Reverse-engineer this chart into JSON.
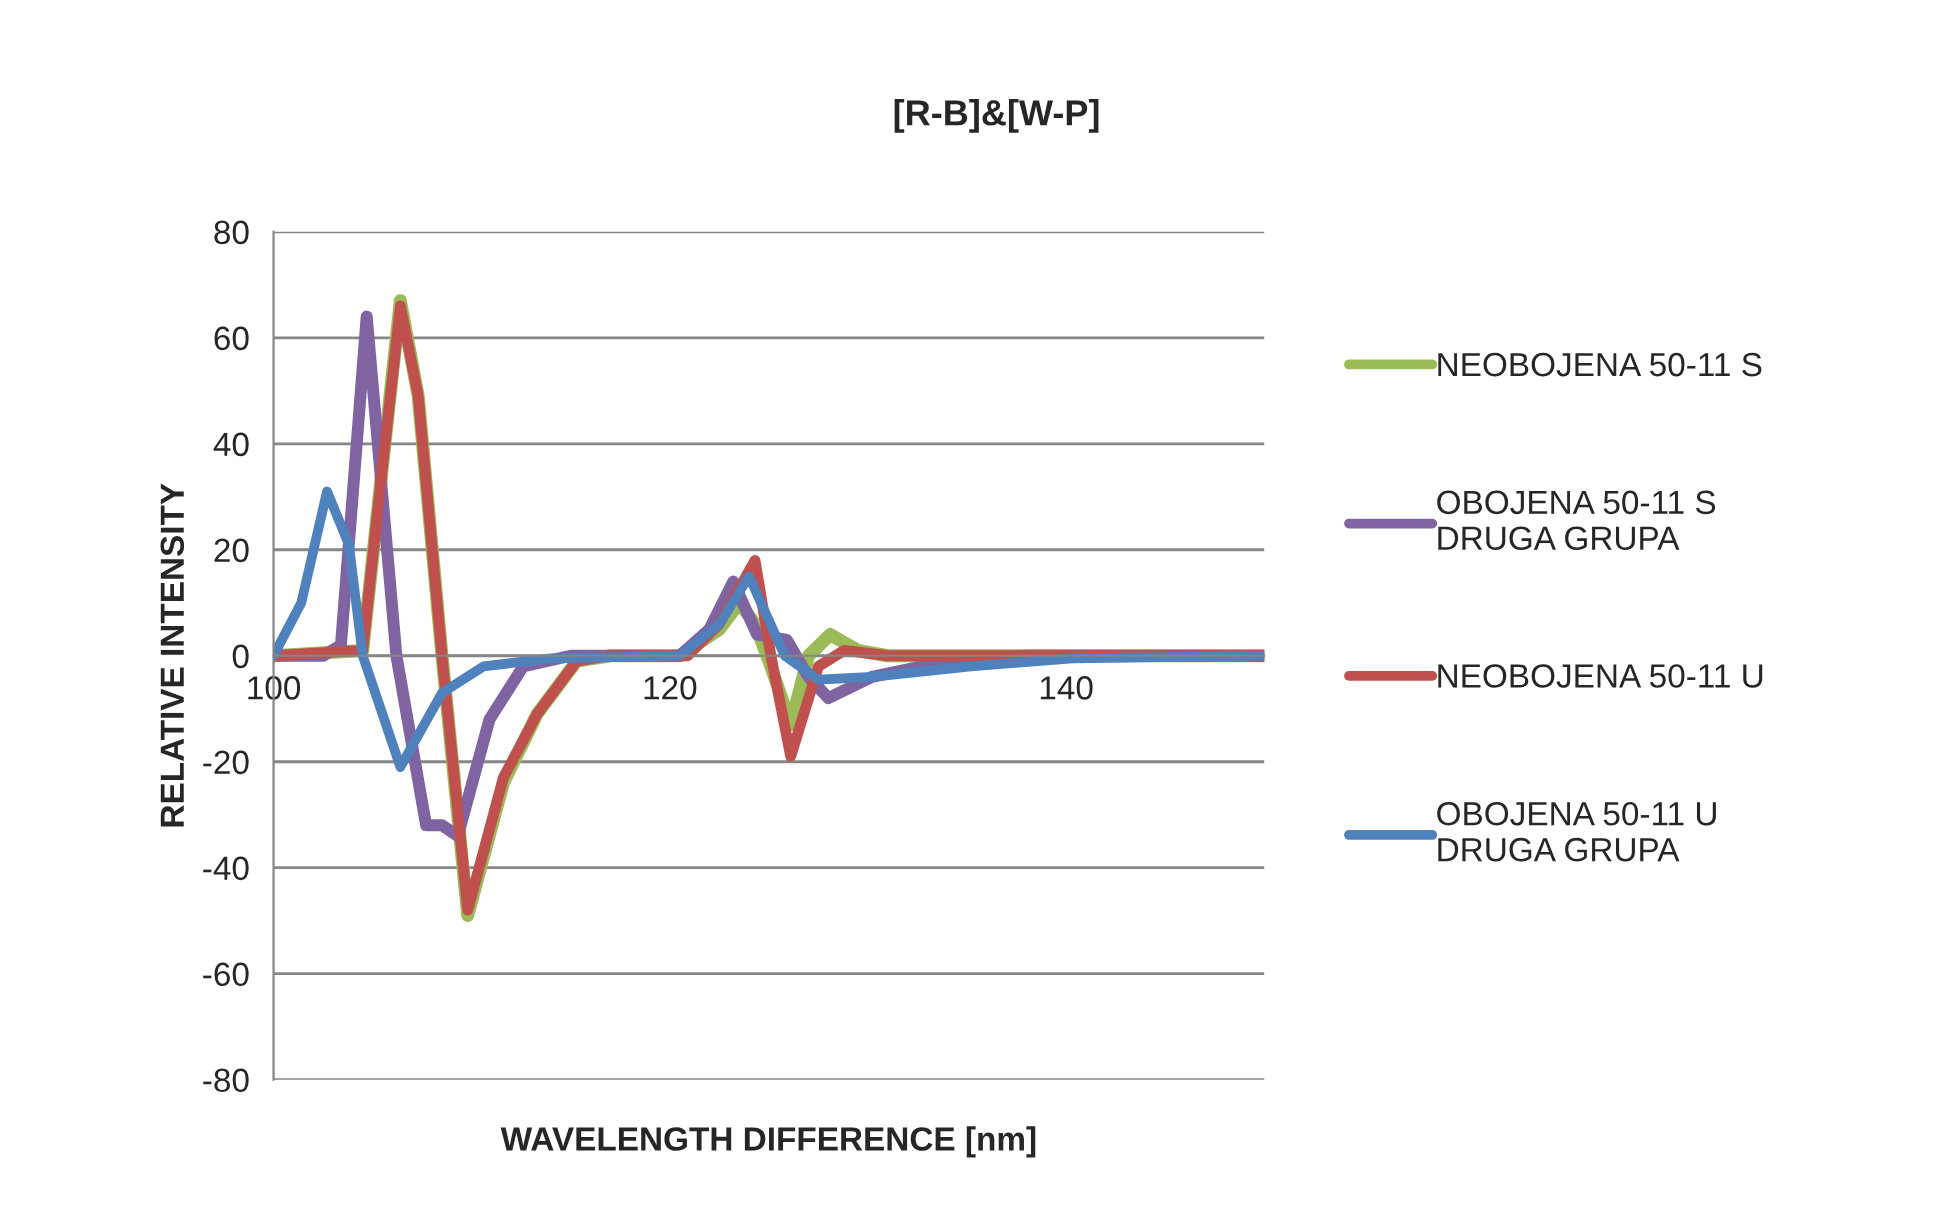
{
  "chart_data": {
    "type": "line",
    "title": "[R-B]&[W-P]",
    "xlabel": "WAVELENGTH DIFFERENCE [nm]",
    "ylabel": "RELATIVE INTENSITY",
    "xlim": [
      100,
      150
    ],
    "xticks": [
      100,
      120,
      140
    ],
    "ylim": [
      -80,
      80
    ],
    "yticks": [
      -80,
      -60,
      -40,
      -20,
      0,
      20,
      40,
      60,
      80
    ],
    "grid": "y",
    "legend": "right",
    "marker": "none",
    "line_style": "solid",
    "series": [
      {
        "name": "NEOBOJENA 50-11 S",
        "color": "#9bbb59",
        "x": [
          100,
          104.5,
          105.3,
          106.4,
          107.3,
          108.5,
          109.8,
          111.6,
          113.3,
          115.3,
          117,
          120.5,
          122.5,
          123.5,
          124.3,
          125.1,
          126.1,
          127,
          128.1,
          129.5,
          131,
          150
        ],
        "values": [
          0,
          1,
          29,
          67,
          49,
          0,
          -49,
          -24,
          -11,
          -1,
          0,
          0,
          5,
          10,
          6,
          -2,
          -13,
          0,
          4,
          1,
          0,
          0
        ]
      },
      {
        "name": "OBOJENA 50-11 S DRUGA GRUPA",
        "color": "#8064a2",
        "x": [
          100,
          102.5,
          103.4,
          104.7,
          106.2,
          107.7,
          108.5,
          109.3,
          110.9,
          112.6,
          115,
          120.5,
          122,
          123.2,
          124.4,
          125.9,
          127,
          128,
          130.2,
          134,
          138,
          150
        ],
        "values": [
          0,
          0,
          2,
          64,
          0,
          -32,
          -32,
          -34,
          -12,
          -2,
          0,
          0,
          5,
          14,
          4,
          3,
          -4,
          -8,
          -4,
          -1,
          0,
          0
        ]
      },
      {
        "name": "NEOBOJENA 50-11 U",
        "color": "#c0504d",
        "x": [
          100,
          104.5,
          105.3,
          106.4,
          107.3,
          108.5,
          109.8,
          111.6,
          113.3,
          115.3,
          117,
          120.9,
          122.5,
          124.3,
          125.1,
          126.1,
          127.5,
          128.8,
          131,
          150
        ],
        "values": [
          0,
          1,
          29,
          66,
          49,
          0,
          -48,
          -23,
          -11,
          -1,
          0,
          0,
          6,
          18,
          0,
          -19,
          -2,
          1,
          0,
          0
        ]
      },
      {
        "name": "OBOJENA 50-11 U DRUGA GRUPA",
        "color": "#4f81bd",
        "x": [
          100,
          101.4,
          102.7,
          103.8,
          104.5,
          106.4,
          108.5,
          110.6,
          114,
          120.5,
          122.5,
          124,
          125.8,
          127.5,
          130.2,
          135.2,
          140.3,
          150
        ],
        "values": [
          0,
          10,
          31,
          21,
          0,
          -21,
          -7,
          -2,
          -0.5,
          0,
          6,
          15,
          0,
          -4.5,
          -4,
          -2,
          -0.5,
          0
        ]
      }
    ]
  }
}
